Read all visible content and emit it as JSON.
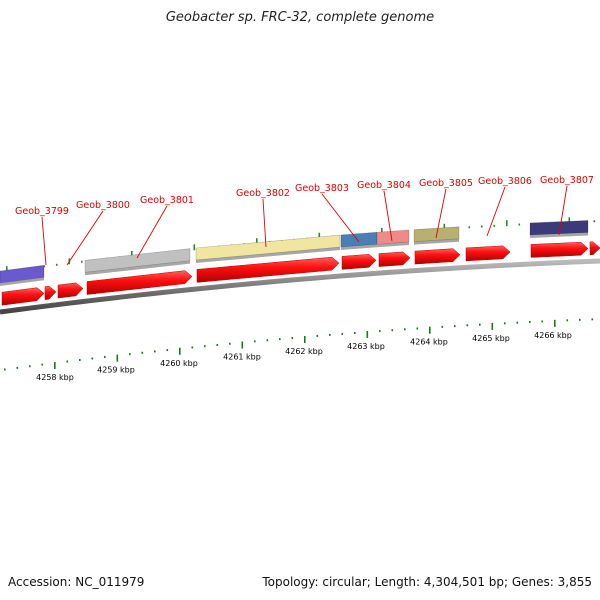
{
  "title": "Geobacter sp. FRC-32, complete genome",
  "footer": {
    "accession": "Accession: NC_011979",
    "topology": "Topology: circular; Length: 4,304,501 bp; Genes: 3,855"
  },
  "colors": {
    "backbone": "#8a8a8a",
    "cds": "#ff1010",
    "tick_top": "#2a8a2a",
    "tick_bottom": "#1a7a1a",
    "label": "#e00000"
  },
  "gene_labels": [
    "Geob_3799",
    "Geob_3800",
    "Geob_3801",
    "Geob_3802",
    "Geob_3803",
    "Geob_3804",
    "Geob_3805",
    "Geob_3806",
    "Geob_3807"
  ],
  "kbp_labels": [
    "4258 kbp",
    "4259 kbp",
    "4260 kbp",
    "4261 kbp",
    "4262 kbp",
    "4263 kbp",
    "4264 kbp",
    "4265 kbp",
    "4266 kbp"
  ],
  "feature_blocks": [
    {
      "name": "block-left-purple",
      "color": "#6a5acd"
    },
    {
      "name": "block-grey",
      "color": "#c0c0c0"
    },
    {
      "name": "block-yellow",
      "color": "#f0e6a0"
    },
    {
      "name": "block-blue",
      "color": "#4a7fb5"
    },
    {
      "name": "block-pink",
      "color": "#f08a8a"
    },
    {
      "name": "block-olive",
      "color": "#b8b070"
    },
    {
      "name": "block-navy",
      "color": "#3d3a7a"
    }
  ]
}
